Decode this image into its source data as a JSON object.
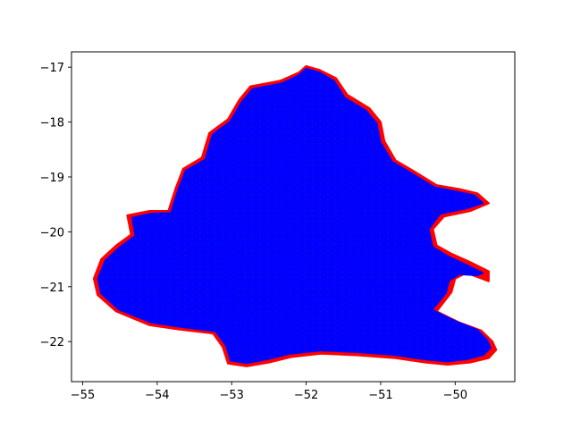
{
  "chart_data": {
    "type": "scatter",
    "title": "",
    "xlabel": "",
    "ylabel": "",
    "xlim": [
      -55.15,
      -49.2
    ],
    "ylim": [
      -22.73,
      -16.72
    ],
    "xticks": [
      -55,
      -54,
      -53,
      -52,
      -51,
      -50
    ],
    "yticks": [
      -22,
      -21,
      -20,
      -19,
      -18,
      -17
    ],
    "xtick_labels": [
      "−55",
      "−54",
      "−53",
      "−52",
      "−51",
      "−50"
    ],
    "ytick_labels": [
      "−22",
      "−21",
      "−20",
      "−19",
      "−18",
      "−17"
    ],
    "grid": false,
    "legend": "none",
    "series": [
      {
        "marker": "dot",
        "color": "#ff0000",
        "grid_spacing": 0.1,
        "region_outline": [
          [
            -52.0,
            -16.98
          ],
          [
            -51.82,
            -17.05
          ],
          [
            -51.6,
            -17.2
          ],
          [
            -51.45,
            -17.5
          ],
          [
            -51.15,
            -17.75
          ],
          [
            -51.0,
            -18.0
          ],
          [
            -50.95,
            -18.35
          ],
          [
            -50.8,
            -18.7
          ],
          [
            -50.55,
            -18.9
          ],
          [
            -50.25,
            -19.15
          ],
          [
            -49.95,
            -19.22
          ],
          [
            -49.7,
            -19.3
          ],
          [
            -49.55,
            -19.48
          ],
          [
            -49.8,
            -19.62
          ],
          [
            -50.15,
            -19.72
          ],
          [
            -50.3,
            -19.95
          ],
          [
            -50.25,
            -20.25
          ],
          [
            -50.05,
            -20.4
          ],
          [
            -49.8,
            -20.55
          ],
          [
            -49.55,
            -20.72
          ],
          [
            -49.55,
            -20.9
          ],
          [
            -49.85,
            -20.75
          ],
          [
            -50.0,
            -20.85
          ],
          [
            -50.05,
            -21.1
          ],
          [
            -50.25,
            -21.45
          ],
          [
            -49.95,
            -21.65
          ],
          [
            -49.65,
            -21.8
          ],
          [
            -49.5,
            -22.0
          ],
          [
            -49.45,
            -22.15
          ],
          [
            -49.55,
            -22.3
          ],
          [
            -49.8,
            -22.38
          ],
          [
            -50.1,
            -22.42
          ],
          [
            -50.4,
            -22.38
          ],
          [
            -50.8,
            -22.3
          ],
          [
            -51.3,
            -22.25
          ],
          [
            -51.8,
            -22.22
          ],
          [
            -52.2,
            -22.28
          ],
          [
            -52.5,
            -22.38
          ],
          [
            -52.8,
            -22.45
          ],
          [
            -53.05,
            -22.4
          ],
          [
            -53.12,
            -22.1
          ],
          [
            -53.25,
            -21.85
          ],
          [
            -53.7,
            -21.78
          ],
          [
            -54.1,
            -21.7
          ],
          [
            -54.55,
            -21.45
          ],
          [
            -54.8,
            -21.15
          ],
          [
            -54.85,
            -20.85
          ],
          [
            -54.75,
            -20.5
          ],
          [
            -54.55,
            -20.25
          ],
          [
            -54.35,
            -20.05
          ],
          [
            -54.4,
            -19.7
          ],
          [
            -54.1,
            -19.62
          ],
          [
            -53.85,
            -19.62
          ],
          [
            -53.75,
            -19.2
          ],
          [
            -53.65,
            -18.85
          ],
          [
            -53.4,
            -18.65
          ],
          [
            -53.3,
            -18.2
          ],
          [
            -53.05,
            -17.95
          ],
          [
            -52.9,
            -17.6
          ],
          [
            -52.75,
            -17.35
          ],
          [
            -52.35,
            -17.25
          ],
          [
            -52.1,
            -17.1
          ]
        ]
      },
      {
        "marker": "line-mesh",
        "color": "#0000ff",
        "grid_spacing": 0.1,
        "region_outline": [
          [
            -52.0,
            -17.02
          ],
          [
            -51.82,
            -17.09
          ],
          [
            -51.62,
            -17.25
          ],
          [
            -51.48,
            -17.55
          ],
          [
            -51.2,
            -17.78
          ],
          [
            -51.05,
            -18.02
          ],
          [
            -51.0,
            -18.36
          ],
          [
            -50.84,
            -18.72
          ],
          [
            -50.58,
            -18.93
          ],
          [
            -50.28,
            -19.18
          ],
          [
            -49.98,
            -19.26
          ],
          [
            -49.74,
            -19.33
          ],
          [
            -49.62,
            -19.48
          ],
          [
            -49.85,
            -19.58
          ],
          [
            -50.2,
            -19.68
          ],
          [
            -50.35,
            -19.95
          ],
          [
            -50.3,
            -20.27
          ],
          [
            -50.08,
            -20.45
          ],
          [
            -49.84,
            -20.6
          ],
          [
            -49.62,
            -20.75
          ],
          [
            -49.7,
            -20.8
          ],
          [
            -49.95,
            -20.78
          ],
          [
            -50.08,
            -20.9
          ],
          [
            -50.12,
            -21.12
          ],
          [
            -50.3,
            -21.42
          ],
          [
            -50.0,
            -21.62
          ],
          [
            -49.7,
            -21.78
          ],
          [
            -49.56,
            -21.98
          ],
          [
            -49.52,
            -22.12
          ],
          [
            -49.62,
            -22.25
          ],
          [
            -49.84,
            -22.33
          ],
          [
            -50.12,
            -22.37
          ],
          [
            -50.42,
            -22.33
          ],
          [
            -50.82,
            -22.25
          ],
          [
            -51.3,
            -22.2
          ],
          [
            -51.8,
            -22.17
          ],
          [
            -52.22,
            -22.23
          ],
          [
            -52.52,
            -22.33
          ],
          [
            -52.8,
            -22.4
          ],
          [
            -53.02,
            -22.35
          ],
          [
            -53.08,
            -22.08
          ],
          [
            -53.22,
            -21.82
          ],
          [
            -53.68,
            -21.74
          ],
          [
            -54.08,
            -21.66
          ],
          [
            -54.52,
            -21.42
          ],
          [
            -54.76,
            -21.12
          ],
          [
            -54.8,
            -20.85
          ],
          [
            -54.7,
            -20.52
          ],
          [
            -54.5,
            -20.27
          ],
          [
            -54.3,
            -20.07
          ],
          [
            -54.34,
            -19.74
          ],
          [
            -54.08,
            -19.66
          ],
          [
            -53.82,
            -19.65
          ],
          [
            -53.72,
            -19.22
          ],
          [
            -53.62,
            -18.88
          ],
          [
            -53.36,
            -18.68
          ],
          [
            -53.26,
            -18.22
          ],
          [
            -53.02,
            -17.98
          ],
          [
            -52.87,
            -17.63
          ],
          [
            -52.72,
            -17.39
          ],
          [
            -52.33,
            -17.29
          ],
          [
            -52.1,
            -17.14
          ]
        ]
      }
    ]
  }
}
